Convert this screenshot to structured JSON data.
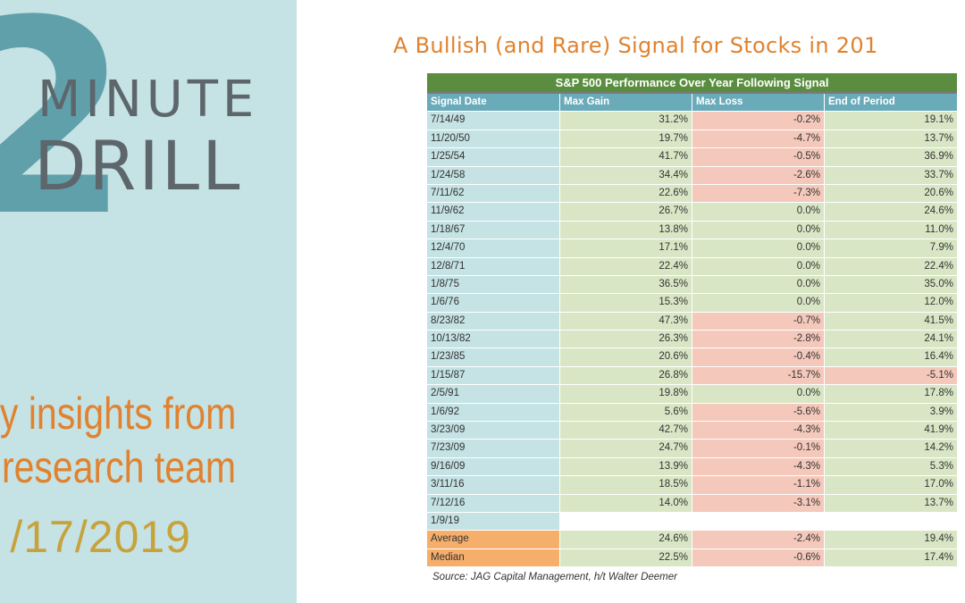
{
  "branding": {
    "big_number": "2",
    "line1": "MINUTE",
    "line2": "DRILL",
    "tagline1": "ely insights from",
    "tagline2": "'s research team",
    "date": "/17/2019"
  },
  "title": "A Bullish (and Rare) Signal for Stocks in 201",
  "source": "Source: JAG Capital Management, h/t Walter Deemer",
  "chart_data": {
    "type": "table",
    "title": "S&P 500 Performance Over Year Following Signal",
    "columns": [
      "Signal Date",
      "Max Gain",
      "Max Loss",
      "End of Period"
    ],
    "rows": [
      {
        "date": "7/14/49",
        "gain": "31.2%",
        "loss": "-0.2%",
        "end": "19.1%"
      },
      {
        "date": "11/20/50",
        "gain": "19.7%",
        "loss": "-4.7%",
        "end": "13.7%"
      },
      {
        "date": "1/25/54",
        "gain": "41.7%",
        "loss": "-0.5%",
        "end": "36.9%"
      },
      {
        "date": "1/24/58",
        "gain": "34.4%",
        "loss": "-2.6%",
        "end": "33.7%"
      },
      {
        "date": "7/11/62",
        "gain": "22.6%",
        "loss": "-7.3%",
        "end": "20.6%"
      },
      {
        "date": "11/9/62",
        "gain": "26.7%",
        "loss": "0.0%",
        "end": "24.6%"
      },
      {
        "date": "1/18/67",
        "gain": "13.8%",
        "loss": "0.0%",
        "end": "11.0%"
      },
      {
        "date": "12/4/70",
        "gain": "17.1%",
        "loss": "0.0%",
        "end": "7.9%"
      },
      {
        "date": "12/8/71",
        "gain": "22.4%",
        "loss": "0.0%",
        "end": "22.4%"
      },
      {
        "date": "1/8/75",
        "gain": "36.5%",
        "loss": "0.0%",
        "end": "35.0%"
      },
      {
        "date": "1/6/76",
        "gain": "15.3%",
        "loss": "0.0%",
        "end": "12.0%"
      },
      {
        "date": "8/23/82",
        "gain": "47.3%",
        "loss": "-0.7%",
        "end": "41.5%"
      },
      {
        "date": "10/13/82",
        "gain": "26.3%",
        "loss": "-2.8%",
        "end": "24.1%"
      },
      {
        "date": "1/23/85",
        "gain": "20.6%",
        "loss": "-0.4%",
        "end": "16.4%"
      },
      {
        "date": "1/15/87",
        "gain": "26.8%",
        "loss": "-15.7%",
        "end": "-5.1%"
      },
      {
        "date": "2/5/91",
        "gain": "19.8%",
        "loss": "0.0%",
        "end": "17.8%"
      },
      {
        "date": "1/6/92",
        "gain": "5.6%",
        "loss": "-5.6%",
        "end": "3.9%"
      },
      {
        "date": "3/23/09",
        "gain": "42.7%",
        "loss": "-4.3%",
        "end": "41.9%"
      },
      {
        "date": "7/23/09",
        "gain": "24.7%",
        "loss": "-0.1%",
        "end": "14.2%"
      },
      {
        "date": "9/16/09",
        "gain": "13.9%",
        "loss": "-4.3%",
        "end": "5.3%"
      },
      {
        "date": "3/11/16",
        "gain": "18.5%",
        "loss": "-1.1%",
        "end": "17.0%"
      },
      {
        "date": "7/12/16",
        "gain": "14.0%",
        "loss": "-3.1%",
        "end": "13.7%"
      },
      {
        "date": "1/9/19",
        "gain": "",
        "loss": "",
        "end": ""
      }
    ],
    "summary": [
      {
        "label": "Average",
        "gain": "24.6%",
        "loss": "-2.4%",
        "end": "19.4%"
      },
      {
        "label": "Median",
        "gain": "22.5%",
        "loss": "-0.6%",
        "end": "17.4%"
      }
    ]
  },
  "colors": {
    "header_green": "#5a8d3f",
    "column_header_teal": "#6aabba",
    "date_column": "#c5e2e4",
    "positive_fill": "#d9e6c5",
    "negative_fill": "#f4c8bb",
    "summary_label": "#f6ae6b",
    "accent_orange": "#e0822f"
  }
}
